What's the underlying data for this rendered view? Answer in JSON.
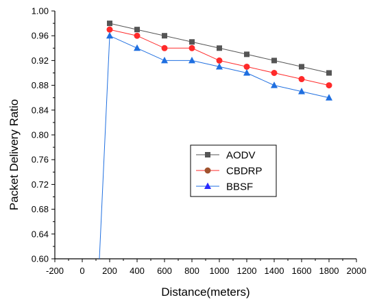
{
  "chart_data": {
    "type": "line",
    "xlabel": "Distance(meters)",
    "ylabel": "Packet Delivery Ratio",
    "xlim": [
      -200,
      2000
    ],
    "ylim": [
      0.6,
      1.0
    ],
    "xticks": [
      -200,
      0,
      200,
      400,
      600,
      800,
      1000,
      1200,
      1400,
      1600,
      1800,
      2000
    ],
    "yticks": [
      0.6,
      0.64,
      0.68,
      0.72,
      0.76,
      0.8,
      0.84,
      0.88,
      0.92,
      0.96,
      1.0
    ],
    "xtick_labels": [
      "-200",
      "0",
      "200",
      "400",
      "600",
      "800",
      "1000",
      "1200",
      "1400",
      "1600",
      "1800",
      "2000"
    ],
    "ytick_labels": [
      "0.60",
      "0.64",
      "0.68",
      "0.72",
      "0.76",
      "0.80",
      "0.84",
      "0.88",
      "0.92",
      "0.96",
      "1.00"
    ],
    "legend_position": "center-right",
    "grid": false,
    "series": [
      {
        "name": "AODV",
        "color": "#555555",
        "marker": "square",
        "x": [
          200,
          400,
          600,
          800,
          1000,
          1200,
          1400,
          1600,
          1800
        ],
        "y": [
          0.98,
          0.97,
          0.96,
          0.95,
          0.94,
          0.93,
          0.92,
          0.91,
          0.9
        ]
      },
      {
        "name": "CBDRP",
        "color": "#ff2a2a",
        "legend_marker_color": "#a0522d",
        "marker": "circle",
        "x": [
          200,
          400,
          600,
          800,
          1000,
          1200,
          1400,
          1600,
          1800
        ],
        "y": [
          0.97,
          0.96,
          0.94,
          0.94,
          0.92,
          0.91,
          0.9,
          0.89,
          0.88
        ]
      },
      {
        "name": "BBSF",
        "color": "#1f6fe0",
        "legend_marker_color": "#2a2aff",
        "marker": "triangle",
        "x": [
          125,
          200,
          400,
          600,
          800,
          1000,
          1200,
          1400,
          1600,
          1800
        ],
        "y": [
          0.6,
          0.96,
          0.94,
          0.92,
          0.92,
          0.91,
          0.9,
          0.88,
          0.87,
          0.86
        ],
        "marker_skip_first": true
      }
    ]
  }
}
